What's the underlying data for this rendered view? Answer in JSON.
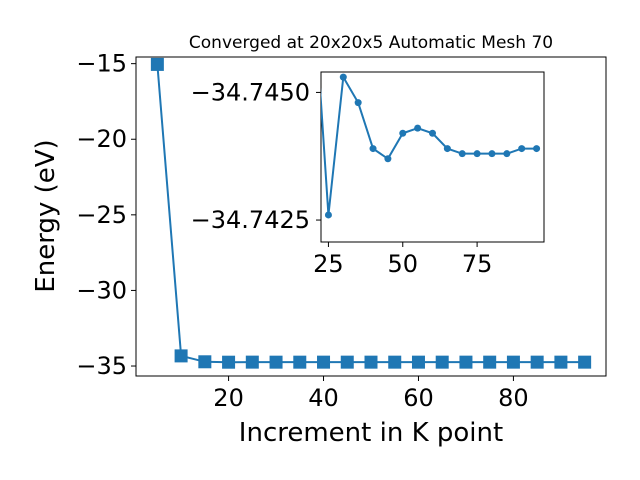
{
  "chart_data": [
    {
      "type": "line",
      "title": "Converged at 20x20x5 Automatic Mesh 70",
      "xlabel": "Increment in K point",
      "ylabel": "Energy (eV)",
      "xlim": [
        0.5,
        99.5
      ],
      "ylim": [
        -35.66,
        -14.56
      ],
      "xticks": [
        20,
        40,
        60,
        80
      ],
      "xtick_labels": [
        "20",
        "40",
        "60",
        "80"
      ],
      "yticks": [
        -15,
        -20,
        -25,
        -30,
        -35
      ],
      "ytick_labels": [
        "−15",
        "−20",
        "−25",
        "−30",
        "−35"
      ],
      "marker": "square",
      "color": "#1f77b4",
      "series": [
        {
          "x": [
            5,
            10,
            15,
            20,
            25,
            30,
            35,
            40,
            45,
            50,
            55,
            60,
            65,
            70,
            75,
            80,
            85,
            90,
            95
          ],
          "values": [
            -15.05,
            -34.33,
            -34.72,
            -34.747,
            -34.7426,
            -34.7453,
            -34.7448,
            -34.7439,
            -34.7437,
            -34.7442,
            -34.7443,
            -34.7442,
            -34.7439,
            -34.7438,
            -34.7438,
            -34.7438,
            -34.7438,
            -34.7439,
            -34.7439
          ]
        }
      ]
    },
    {
      "type": "line",
      "inset": true,
      "xlim": [
        22.5,
        97.5
      ],
      "ylim": [
        -34.74207,
        -34.7454
      ],
      "xticks": [
        25,
        50,
        75
      ],
      "xtick_labels": [
        "25",
        "50",
        "75"
      ],
      "yticks": [
        -34.745,
        -34.7425
      ],
      "ytick_labels": [
        "−34.7450",
        "−34.7425"
      ],
      "marker": "circle",
      "color": "#1f77b4",
      "series": [
        {
          "x": [
            20,
            25,
            30,
            35,
            40,
            45,
            50,
            55,
            60,
            65,
            70,
            75,
            80,
            85,
            90,
            95
          ],
          "values": [
            -34.747,
            -34.7426,
            -34.7453,
            -34.7448,
            -34.7439,
            -34.7437,
            -34.7442,
            -34.7443,
            -34.7442,
            -34.7439,
            -34.7438,
            -34.7438,
            -34.7438,
            -34.7438,
            -34.7439,
            -34.7439
          ]
        }
      ]
    }
  ]
}
